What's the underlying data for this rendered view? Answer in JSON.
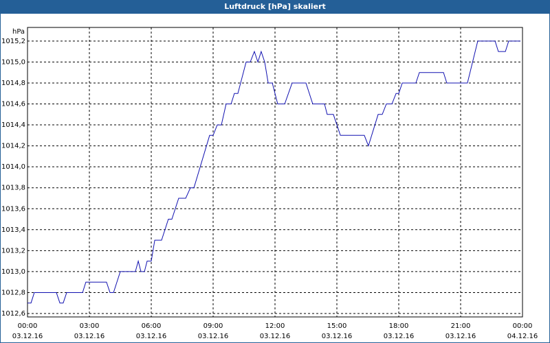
{
  "window_title": "Luftdruck [hPa] skaliert",
  "chart_data": {
    "type": "line",
    "y_unit": "hPa",
    "x": [
      0,
      0.17,
      0.33,
      1.4,
      1.57,
      1.73,
      1.9,
      2.67,
      2.83,
      3.83,
      4.0,
      4.17,
      4.5,
      5.23,
      5.37,
      5.5,
      5.67,
      5.8,
      6.0,
      6.17,
      6.5,
      6.83,
      7.0,
      7.33,
      7.67,
      7.9,
      8.07,
      8.83,
      9.0,
      9.2,
      9.4,
      9.63,
      9.87,
      10.03,
      10.2,
      10.6,
      10.8,
      11.0,
      11.17,
      11.33,
      11.5,
      11.67,
      11.87,
      12.13,
      12.47,
      12.83,
      13.5,
      13.83,
      14.4,
      14.53,
      14.83,
      15.17,
      16.33,
      16.53,
      17.0,
      17.2,
      17.4,
      17.67,
      17.87,
      18.0,
      18.17,
      18.83,
      19.0,
      20.17,
      20.33,
      21.33,
      21.83,
      22.67,
      22.83,
      23.17,
      23.33,
      23.9
    ],
    "series": [
      {
        "color": "#1010b0",
        "values": [
          1012.7,
          1012.7,
          1012.8,
          1012.8,
          1012.7,
          1012.7,
          1012.8,
          1012.8,
          1012.9,
          1012.9,
          1012.8,
          1012.8,
          1013.0,
          1013.0,
          1013.1,
          1013.0,
          1013.0,
          1013.1,
          1013.1,
          1013.3,
          1013.3,
          1013.5,
          1013.5,
          1013.7,
          1013.7,
          1013.8,
          1013.8,
          1014.3,
          1014.3,
          1014.4,
          1014.4,
          1014.6,
          1014.6,
          1014.7,
          1014.7,
          1015.0,
          1015.0,
          1015.1,
          1015.0,
          1015.1,
          1015.0,
          1014.8,
          1014.8,
          1014.6,
          1014.6,
          1014.8,
          1014.8,
          1014.6,
          1014.6,
          1014.5,
          1014.5,
          1014.3,
          1014.3,
          1014.2,
          1014.5,
          1014.5,
          1014.6,
          1014.6,
          1014.7,
          1014.7,
          1014.8,
          1014.8,
          1014.9,
          1014.9,
          1014.8,
          1014.8,
          1015.2,
          1015.2,
          1015.1,
          1015.1,
          1015.2,
          1015.2
        ]
      }
    ],
    "xlim": [
      0,
      24
    ],
    "xticks": [
      {
        "value": 0,
        "label": "00:00",
        "date": "03.12.16"
      },
      {
        "value": 3,
        "label": "03:00",
        "date": "03.12.16"
      },
      {
        "value": 6,
        "label": "06:00",
        "date": "03.12.16"
      },
      {
        "value": 9,
        "label": "09:00",
        "date": "03.12.16"
      },
      {
        "value": 12,
        "label": "12:00",
        "date": "03.12.16"
      },
      {
        "value": 15,
        "label": "15:00",
        "date": "03.12.16"
      },
      {
        "value": 18,
        "label": "18:00",
        "date": "03.12.16"
      },
      {
        "value": 21,
        "label": "21:00",
        "date": "03.12.16"
      },
      {
        "value": 24,
        "label": "00:00",
        "date": "04.12.16"
      }
    ],
    "ylim": [
      1012.6,
      1015.33
    ],
    "yticks": [
      {
        "value": 1012.6,
        "label": "1012,6"
      },
      {
        "value": 1012.8,
        "label": "1012,8"
      },
      {
        "value": 1013.0,
        "label": "1013,0"
      },
      {
        "value": 1013.2,
        "label": "1013,2"
      },
      {
        "value": 1013.4,
        "label": "1013,4"
      },
      {
        "value": 1013.6,
        "label": "1013,6"
      },
      {
        "value": 1013.8,
        "label": "1013,8"
      },
      {
        "value": 1014.0,
        "label": "1014,0"
      },
      {
        "value": 1014.2,
        "label": "1014,2"
      },
      {
        "value": 1014.4,
        "label": "1014,4"
      },
      {
        "value": 1014.6,
        "label": "1014,6"
      },
      {
        "value": 1014.8,
        "label": "1014,8"
      },
      {
        "value": 1015.0,
        "label": "1015,0"
      },
      {
        "value": 1015.2,
        "label": "1015,2"
      }
    ],
    "grid": true
  }
}
